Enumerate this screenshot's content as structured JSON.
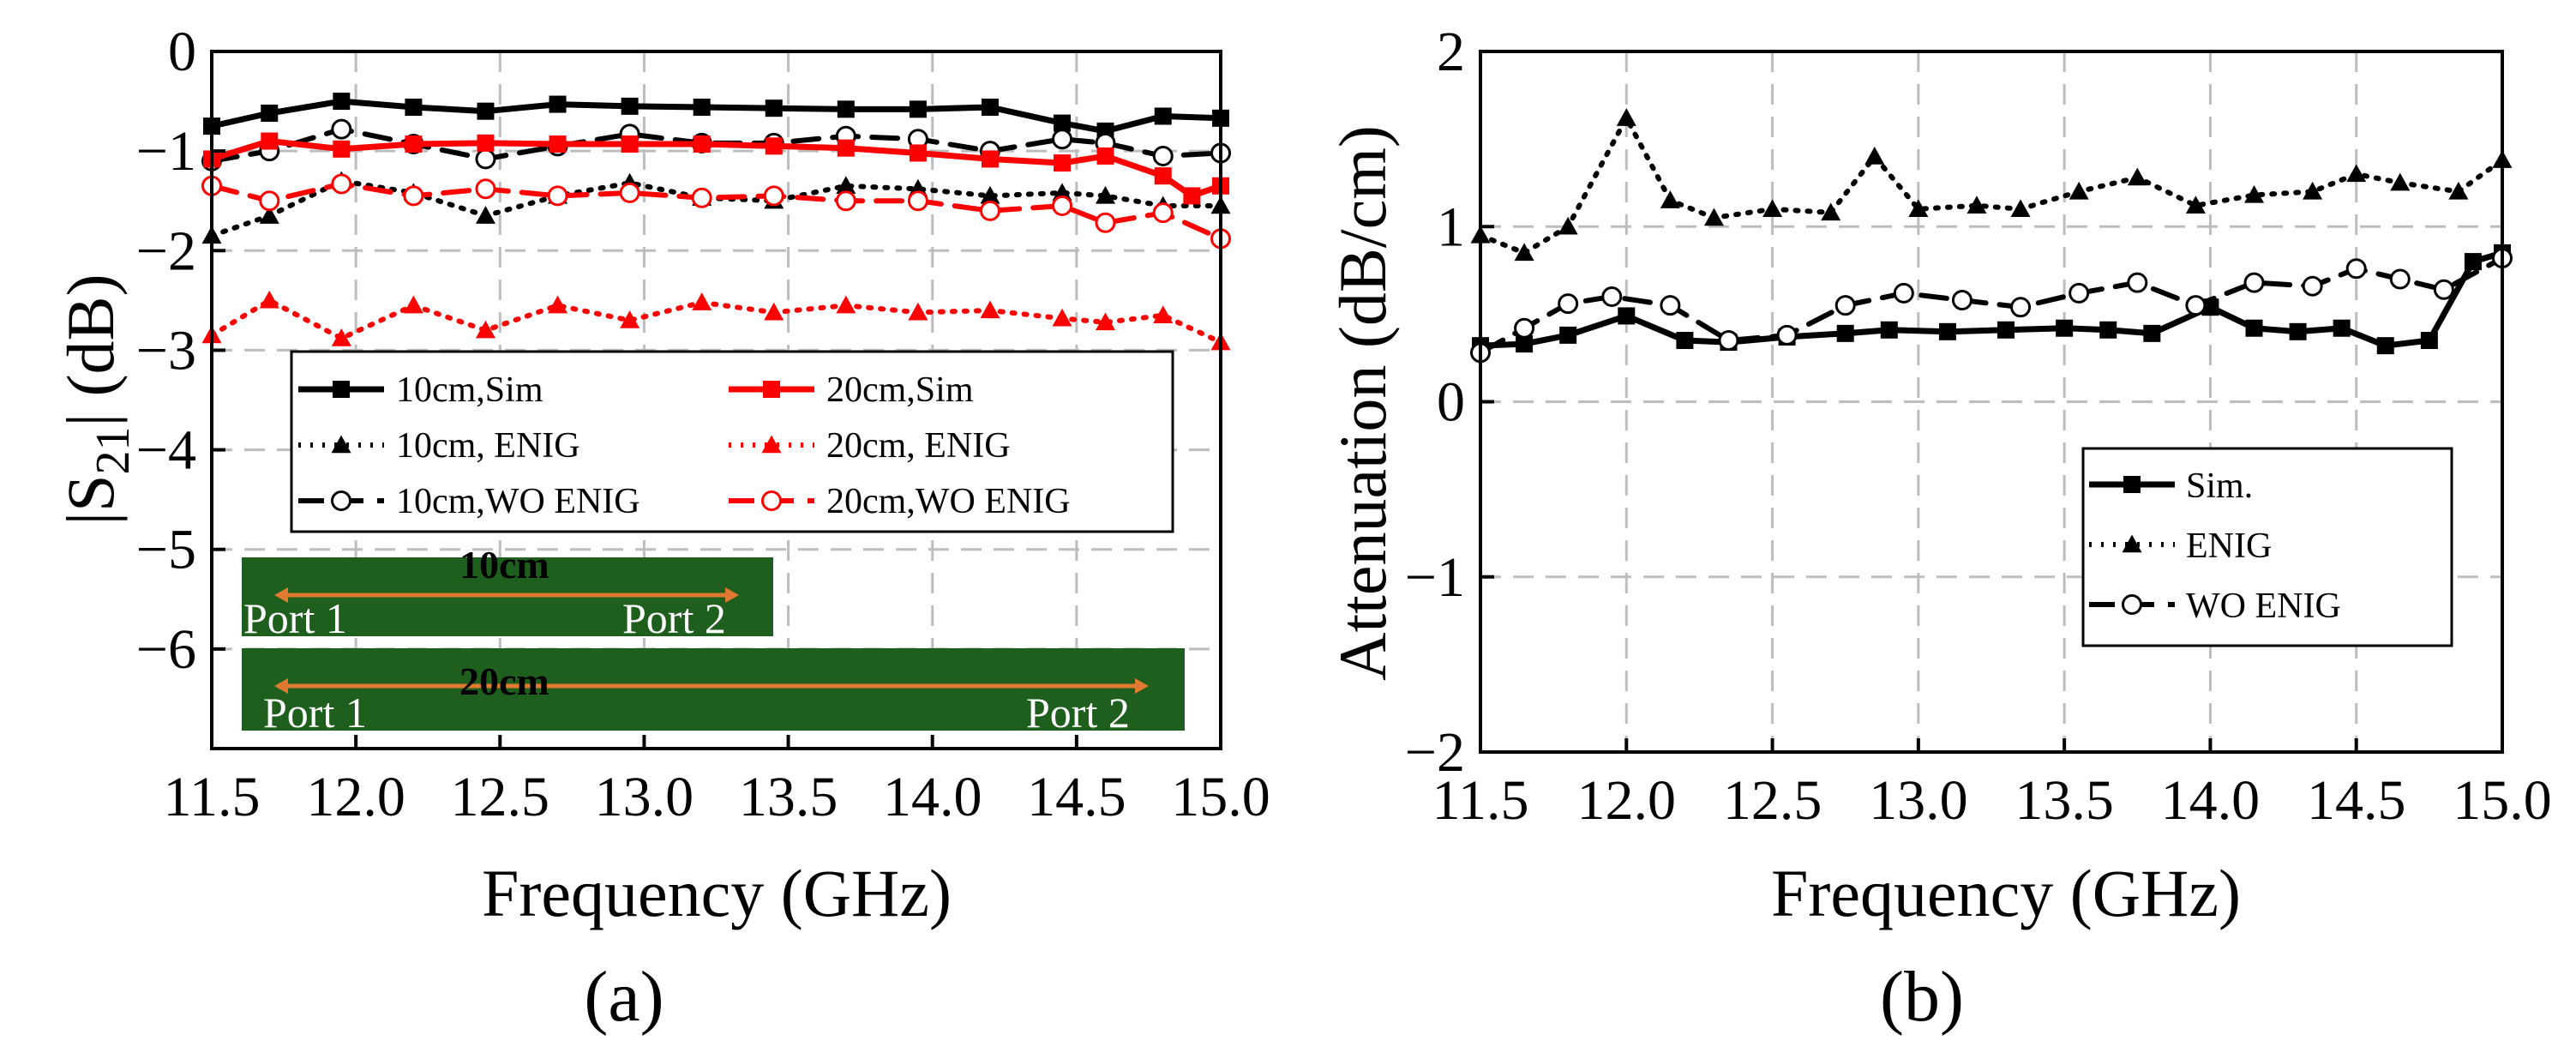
{
  "chart_data": [
    {
      "type": "line",
      "panel_label": "(a)",
      "xlabel": "Frequency (GHz)",
      "ylabel_main": "|S",
      "ylabel_sub": "21",
      "ylabel_tail": "| (dB)",
      "xlim": [
        11.5,
        15.0
      ],
      "ylim": [
        -7,
        0
      ],
      "xticks": [
        "11.5",
        "12.0",
        "12.5",
        "13.0",
        "13.5",
        "14.0",
        "14.5",
        "15.0"
      ],
      "yticks": [
        "0",
        "−1",
        "−2",
        "−3",
        "−4",
        "−5",
        "−6"
      ],
      "grid": true,
      "legend_position": "center",
      "legend_columns": 2,
      "series": [
        {
          "name": "10cm,Sim",
          "color": "#000000",
          "style": "solid",
          "marker": "square",
          "x": [
            11.5,
            11.7,
            11.95,
            12.2,
            12.45,
            12.7,
            12.95,
            13.2,
            13.45,
            13.7,
            13.95,
            14.2,
            14.45,
            14.6,
            14.8,
            15.0
          ],
          "y": [
            -0.75,
            -0.62,
            -0.5,
            -0.56,
            -0.6,
            -0.53,
            -0.55,
            -0.56,
            -0.57,
            -0.58,
            -0.58,
            -0.56,
            -0.72,
            -0.8,
            -0.65,
            -0.67
          ]
        },
        {
          "name": "10cm, ENIG",
          "color": "#000000",
          "style": "dotted",
          "marker": "triangle",
          "x": [
            11.5,
            11.7,
            11.95,
            12.2,
            12.45,
            12.7,
            12.95,
            13.2,
            13.45,
            13.7,
            13.95,
            14.2,
            14.45,
            14.6,
            14.8,
            15.0
          ],
          "y": [
            -1.85,
            -1.65,
            -1.3,
            -1.42,
            -1.65,
            -1.45,
            -1.32,
            -1.47,
            -1.5,
            -1.35,
            -1.38,
            -1.45,
            -1.42,
            -1.45,
            -1.55,
            -1.55
          ]
        },
        {
          "name": "10cm,WO ENIG",
          "color": "#000000",
          "style": "dashed",
          "marker": "circle",
          "x": [
            11.5,
            11.7,
            11.95,
            12.2,
            12.45,
            12.7,
            12.95,
            13.2,
            13.45,
            13.7,
            13.95,
            14.2,
            14.45,
            14.6,
            14.8,
            15.0
          ],
          "y": [
            -1.1,
            -1.0,
            -0.78,
            -0.93,
            -1.08,
            -0.95,
            -0.83,
            -0.92,
            -0.92,
            -0.85,
            -0.88,
            -1.0,
            -0.88,
            -0.92,
            -1.05,
            -1.02
          ]
        },
        {
          "name": "20cm,Sim",
          "color": "#ff0000",
          "style": "solid",
          "marker": "square",
          "x": [
            11.5,
            11.7,
            11.95,
            12.2,
            12.45,
            12.7,
            12.95,
            13.2,
            13.45,
            13.7,
            13.95,
            14.2,
            14.45,
            14.6,
            14.8,
            14.9,
            15.0
          ],
          "y": [
            -1.08,
            -0.9,
            -0.98,
            -0.93,
            -0.92,
            -0.93,
            -0.93,
            -0.93,
            -0.95,
            -0.97,
            -1.02,
            -1.08,
            -1.12,
            -1.05,
            -1.25,
            -1.45,
            -1.35
          ]
        },
        {
          "name": "20cm, ENIG",
          "color": "#ff0000",
          "style": "dotted",
          "marker": "triangle",
          "x": [
            11.5,
            11.7,
            11.95,
            12.2,
            12.45,
            12.7,
            12.95,
            13.2,
            13.45,
            13.7,
            13.95,
            14.2,
            14.45,
            14.6,
            14.8,
            15.0
          ],
          "y": [
            -2.85,
            -2.5,
            -2.88,
            -2.55,
            -2.8,
            -2.55,
            -2.7,
            -2.52,
            -2.62,
            -2.55,
            -2.62,
            -2.6,
            -2.68,
            -2.72,
            -2.65,
            -2.92
          ]
        },
        {
          "name": "20cm,WO ENIG",
          "color": "#ff0000",
          "style": "dashed",
          "marker": "circle",
          "x": [
            11.5,
            11.7,
            11.95,
            12.2,
            12.45,
            12.7,
            12.95,
            13.2,
            13.45,
            13.7,
            13.95,
            14.2,
            14.45,
            14.6,
            14.8,
            15.0
          ],
          "y": [
            -1.35,
            -1.5,
            -1.33,
            -1.45,
            -1.38,
            -1.45,
            -1.42,
            -1.47,
            -1.45,
            -1.5,
            -1.5,
            -1.6,
            -1.55,
            -1.72,
            -1.62,
            -1.88
          ]
        }
      ],
      "inset": {
        "label_10cm": "10cm",
        "label_20cm": "20cm",
        "port1": "Port 1",
        "port2": "Port 2",
        "board_color": "#1e5f1e",
        "line_color": "#e07a30"
      }
    },
    {
      "type": "line",
      "panel_label": "(b)",
      "xlabel": "Frequency (GHz)",
      "ylabel": "Attenuation (dB/cm)",
      "xlim": [
        11.5,
        15.0
      ],
      "ylim": [
        -2,
        2
      ],
      "xticks": [
        "11.5",
        "12.0",
        "12.5",
        "13.0",
        "13.5",
        "14.0",
        "14.5",
        "15.0"
      ],
      "yticks": [
        "2",
        "1",
        "0",
        "−1",
        "−2"
      ],
      "grid": true,
      "legend_position": "bottom-right",
      "series": [
        {
          "name": "Sim.",
          "color": "#000000",
          "style": "solid",
          "marker": "square",
          "x": [
            11.5,
            11.65,
            11.8,
            12.0,
            12.2,
            12.35,
            12.55,
            12.75,
            12.9,
            13.1,
            13.3,
            13.5,
            13.65,
            13.8,
            14.0,
            14.15,
            14.3,
            14.45,
            14.6,
            14.75,
            14.9,
            15.0
          ],
          "y": [
            0.32,
            0.33,
            0.38,
            0.49,
            0.35,
            0.34,
            0.37,
            0.39,
            0.41,
            0.4,
            0.41,
            0.42,
            0.41,
            0.39,
            0.54,
            0.42,
            0.4,
            0.42,
            0.32,
            0.35,
            0.8,
            0.85
          ]
        },
        {
          "name": "ENIG",
          "color": "#000000",
          "style": "dotted",
          "marker": "triangle",
          "x": [
            11.5,
            11.65,
            11.8,
            12.0,
            12.15,
            12.3,
            12.5,
            12.7,
            12.85,
            13.0,
            13.2,
            13.35,
            13.55,
            13.75,
            13.95,
            14.15,
            14.35,
            14.5,
            14.65,
            14.85,
            15.0
          ],
          "y": [
            0.95,
            0.85,
            1.0,
            1.62,
            1.15,
            1.05,
            1.1,
            1.08,
            1.4,
            1.1,
            1.12,
            1.1,
            1.2,
            1.28,
            1.12,
            1.18,
            1.2,
            1.3,
            1.25,
            1.2,
            1.38
          ]
        },
        {
          "name": "WO ENIG",
          "color": "#000000",
          "style": "dashed",
          "marker": "circle",
          "x": [
            11.5,
            11.65,
            11.8,
            11.95,
            12.15,
            12.35,
            12.55,
            12.75,
            12.95,
            13.15,
            13.35,
            13.55,
            13.75,
            13.95,
            14.15,
            14.35,
            14.5,
            14.65,
            14.8,
            15.0
          ],
          "y": [
            0.28,
            0.42,
            0.56,
            0.6,
            0.55,
            0.35,
            0.38,
            0.55,
            0.62,
            0.58,
            0.54,
            0.62,
            0.68,
            0.55,
            0.68,
            0.66,
            0.76,
            0.7,
            0.64,
            0.82
          ]
        }
      ]
    }
  ]
}
